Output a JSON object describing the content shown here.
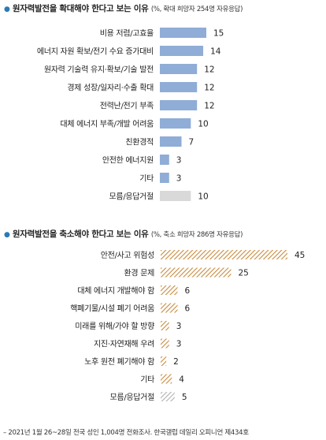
{
  "colors": {
    "blue": "#8fadd6",
    "gray": "#d9d9d9",
    "orange": "#c98b3d",
    "bullet": "#2a7ab8"
  },
  "chart_data": [
    {
      "type": "bar",
      "orientation": "horizontal",
      "bullet": "●",
      "title": "원자력발전을 확대해야 한다고 보는 이유",
      "subtitle": "(%, 확대 희망자 254명 자유응답)",
      "categories": [
        "비용 저렴/고효율",
        "에너지 자원 확보/전기 수요 증가대비",
        "원자력 기술력 유지·확보/기술 발전",
        "경제 성장/일자리·수출 확대",
        "전력난/전기 부족",
        "대체 에너지 부족/개발 어려움",
        "친환경적",
        "안전한 에너지원",
        "기타",
        "모름/응답거절"
      ],
      "values": [
        15,
        14,
        12,
        12,
        12,
        10,
        7,
        3,
        3,
        10
      ],
      "styles": [
        "blue",
        "blue",
        "blue",
        "blue",
        "blue",
        "blue",
        "blue",
        "blue",
        "blue",
        "gray"
      ],
      "xlim": [
        0,
        15
      ]
    },
    {
      "type": "bar",
      "orientation": "horizontal",
      "bullet": "●",
      "title": "원자력발전을 축소해야 한다고 보는 이유",
      "subtitle": "(%, 축소 희망자 286명 자유응답)",
      "categories": [
        "안전/사고 위험성",
        "환경 문제",
        "대체 에너지 개발해야 함",
        "핵폐기물/시설 폐기 어려움",
        "미래를 위해/가야 할 방향",
        "지진·자연재해 우려",
        "노후 원전 폐기해야 함",
        "기타",
        "모름/응답거절"
      ],
      "values": [
        45,
        25,
        6,
        6,
        3,
        3,
        2,
        4,
        5
      ],
      "styles": [
        "hatch",
        "hatch",
        "hatch",
        "hatch",
        "hatch",
        "hatch",
        "hatch",
        "hatch",
        "hatch-gray"
      ],
      "xlim": [
        0,
        45
      ]
    }
  ],
  "footer": "– 2021년 1월 26~28일 전국 성인 1,004명 전화조사. 한국갤럽 데일리 오피니언 제434호"
}
